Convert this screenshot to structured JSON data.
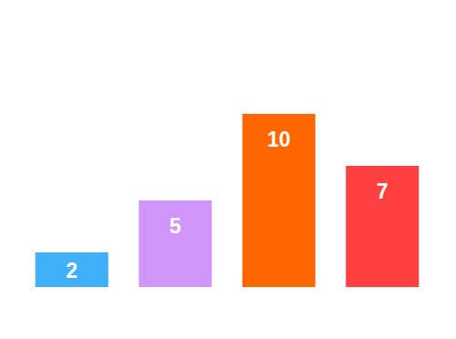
{
  "chart_data": {
    "type": "bar",
    "categories": [
      null,
      null,
      null,
      null
    ],
    "values": [
      2,
      5,
      10,
      7
    ],
    "colors": [
      "#3FB0F7",
      "#D195F9",
      "#FF6600",
      "#FF4040"
    ],
    "ylim": [
      0,
      10
    ],
    "data_labels": true,
    "tick_labels": false
  }
}
